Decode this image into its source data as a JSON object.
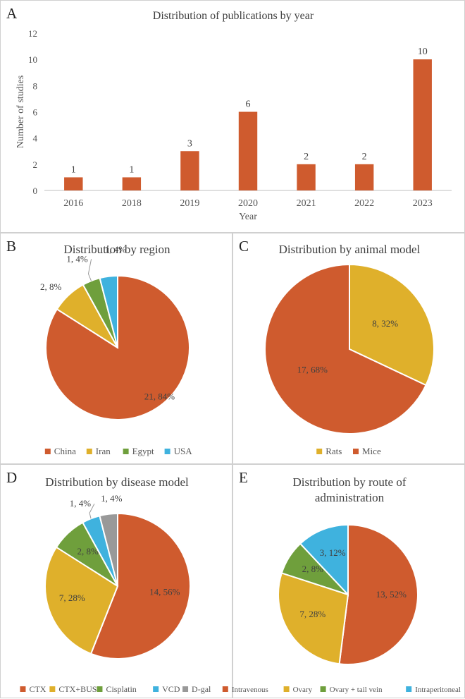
{
  "chart_data": [
    {
      "panel_label": "A",
      "type": "bar",
      "title": "Distribution of publications by year",
      "xlabel": "Year",
      "ylabel": "Number of studies",
      "categories": [
        "2016",
        "2018",
        "2019",
        "2020",
        "2021",
        "2022",
        "2023"
      ],
      "values": [
        1,
        1,
        3,
        6,
        2,
        2,
        10
      ],
      "data_labels": [
        "1",
        "1",
        "3",
        "6",
        "2",
        "2",
        "10"
      ],
      "ylim": [
        0,
        12
      ],
      "yticks": [
        "0",
        "2",
        "4",
        "6",
        "8",
        "10",
        "12"
      ],
      "color": "#cf5b2e"
    },
    {
      "panel_label": "B",
      "type": "pie",
      "title": "Distribution by region",
      "legend_position": "bottom",
      "slices": [
        {
          "label": "China",
          "value": 21,
          "data_label": "21, 84%",
          "color": "#cf5b2e"
        },
        {
          "label": "Iran",
          "value": 2,
          "data_label": "2, 8%",
          "color": "#dfb02b"
        },
        {
          "label": "Egypt",
          "value": 1,
          "data_label": "1, 4%",
          "color": "#6f9f3c"
        },
        {
          "label": "USA",
          "value": 1,
          "data_label": "1, 4%",
          "color": "#3fb2de"
        }
      ]
    },
    {
      "panel_label": "C",
      "type": "pie",
      "title": "Distribution by animal model",
      "legend_position": "bottom",
      "slices": [
        {
          "label": "Rats",
          "value": 8,
          "data_label": "8, 32%",
          "color": "#dfb02b"
        },
        {
          "label": "Mice",
          "value": 17,
          "data_label": "17, 68%",
          "color": "#cf5b2e"
        }
      ]
    },
    {
      "panel_label": "D",
      "type": "pie",
      "title": "Distribution by disease model",
      "legend_position": "bottom",
      "slices": [
        {
          "label": "CTX",
          "value": 14,
          "data_label": "14, 56%",
          "color": "#cf5b2e"
        },
        {
          "label": "CTX+BUS",
          "value": 7,
          "data_label": "7, 28%",
          "color": "#dfb02b"
        },
        {
          "label": "Cisplatin",
          "value": 2,
          "data_label": "2, 8%",
          "color": "#6f9f3c"
        },
        {
          "label": "VCD",
          "value": 1,
          "data_label": "1, 4%",
          "color": "#3fb2de"
        },
        {
          "label": "D-gal",
          "value": 1,
          "data_label": "1, 4%",
          "color": "#999999"
        }
      ]
    },
    {
      "panel_label": "E",
      "type": "pie",
      "title": "Distribution by route of administration",
      "title_lines": [
        "Distribution by route of",
        "administration"
      ],
      "legend_position": "bottom",
      "slices": [
        {
          "label": "Intravenous",
          "value": 13,
          "data_label": "13, 52%",
          "color": "#cf5b2e"
        },
        {
          "label": "Ovary",
          "value": 7,
          "data_label": "7, 28%",
          "color": "#dfb02b"
        },
        {
          "label": "Ovary + tail vein",
          "value": 2,
          "data_label": "2, 8%",
          "color": "#6f9f3c"
        },
        {
          "label": "Intraperitoneal",
          "value": 3,
          "data_label": "3, 12%",
          "color": "#3fb2de"
        }
      ]
    }
  ]
}
